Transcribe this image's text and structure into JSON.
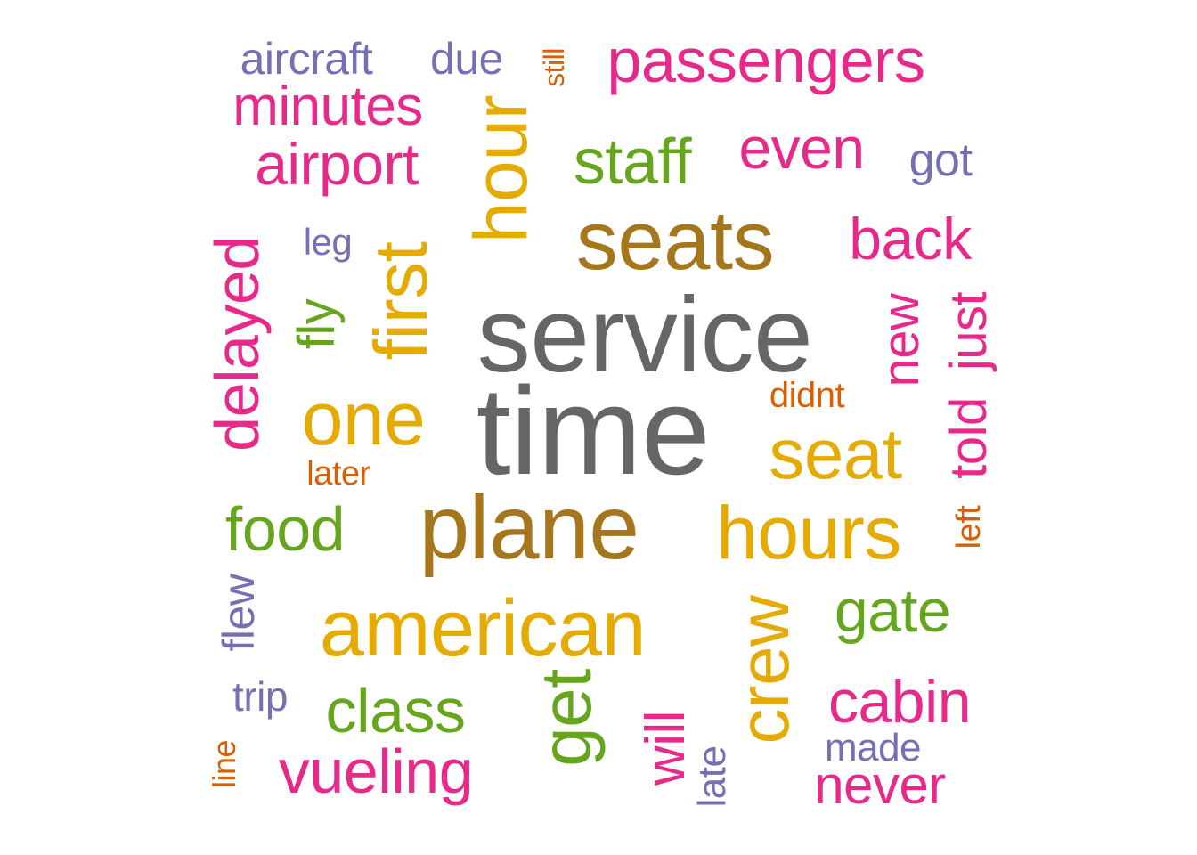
{
  "colors": {
    "gray": "#666666",
    "brown": "#a6761d",
    "gold": "#e6ab02",
    "green": "#66a61e",
    "pink": "#e7298a",
    "purple": "#7570b3",
    "orange": "#d95f02"
  },
  "words": {
    "time": "time",
    "service": "service",
    "plane": "plane",
    "seats": "seats",
    "american": "american",
    "hours": "hours",
    "hour": "hour",
    "first": "first",
    "one": "one",
    "seat": "seat",
    "get": "get",
    "crew": "crew",
    "passengers": "passengers",
    "staff": "staff",
    "food": "food",
    "delayed": "delayed",
    "class": "class",
    "vueling": "vueling",
    "gate": "gate",
    "cabin": "cabin",
    "even": "even",
    "back": "back",
    "airport": "airport",
    "minutes": "minutes",
    "never": "never",
    "will": "will",
    "told": "told",
    "just": "just",
    "new": "new",
    "fly": "fly",
    "aircraft": "aircraft",
    "due": "due",
    "got": "got",
    "flew": "flew",
    "trip": "trip",
    "made": "made",
    "late": "late",
    "leg": "leg",
    "didnt": "didnt",
    "later": "later",
    "left": "left",
    "still": "still",
    "line": "line"
  }
}
